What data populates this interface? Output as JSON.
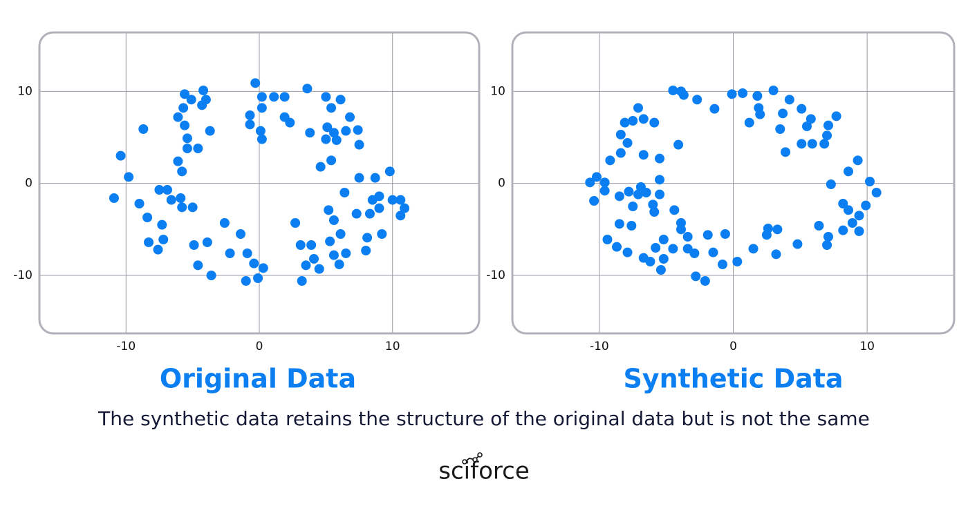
{
  "chart_data": [
    {
      "type": "scatter",
      "title": "Original Data",
      "color": "#0b7ff2",
      "grid": true,
      "xlim": [
        -16.5,
        16.5
      ],
      "ylim": [
        -16.3,
        16.4
      ],
      "xticks": [
        -10,
        0,
        10
      ],
      "yticks": [
        -10,
        0,
        10
      ],
      "x": [
        -0.3,
        3.6,
        -5.6,
        -4.2,
        -5.1,
        -4.0,
        -4.3,
        0.2,
        1.1,
        1.9,
        5.0,
        6.1,
        5.4,
        -5.7,
        0.2,
        -6.1,
        -0.7,
        1.9,
        2.3,
        6.8,
        -5.6,
        -0.7,
        -8.7,
        -3.7,
        0.1,
        3.8,
        5.1,
        5.6,
        6.5,
        7.4,
        -5.4,
        0.2,
        5.0,
        5.8,
        -5.4,
        -4.6,
        7.5,
        -10.4,
        -6.1,
        5.4,
        4.6,
        -5.8,
        -9.8,
        7.5,
        8.7,
        9.8,
        -7.5,
        -6.9,
        6.4,
        -10.9,
        -6.6,
        -5.9,
        -9.0,
        -5.8,
        -5.0,
        8.5,
        9.0,
        10.0,
        10.6,
        10.9,
        5.2,
        9.0,
        7.3,
        8.3,
        10.6,
        -8.4,
        5.6,
        -7.3,
        -2.6,
        2.7,
        -1.4,
        6.1,
        9.2,
        -7.2,
        8.1,
        -8.3,
        -4.9,
        -3.9,
        3.1,
        3.9,
        5.3,
        -7.6,
        -2.2,
        -0.9,
        5.6,
        6.5,
        8.0,
        4.1,
        -0.4,
        -4.6,
        3.5,
        6.0,
        0.3,
        4.5,
        -3.6,
        -1.0,
        -0.1,
        3.2
      ],
      "values": [
        10.9,
        10.3,
        9.7,
        10.1,
        9.1,
        9.1,
        8.5,
        9.4,
        9.4,
        9.4,
        9.4,
        9.1,
        8.2,
        8.2,
        8.2,
        7.2,
        7.4,
        7.2,
        6.6,
        7.2,
        6.3,
        6.4,
        5.9,
        5.7,
        5.7,
        5.5,
        6.1,
        5.5,
        5.7,
        5.8,
        4.9,
        4.8,
        4.8,
        4.7,
        3.8,
        3.8,
        4.2,
        3.0,
        2.4,
        2.5,
        1.8,
        1.3,
        0.7,
        0.6,
        0.6,
        1.3,
        -0.7,
        -0.7,
        -1.0,
        -1.6,
        -1.8,
        -1.6,
        -2.2,
        -2.6,
        -2.6,
        -1.8,
        -1.4,
        -1.8,
        -1.8,
        -2.7,
        -2.9,
        -2.7,
        -3.3,
        -3.3,
        -3.5,
        -3.7,
        -4.0,
        -4.5,
        -4.3,
        -4.3,
        -5.5,
        -5.5,
        -5.5,
        -6.1,
        -5.9,
        -6.4,
        -6.7,
        -6.4,
        -6.7,
        -6.7,
        -6.3,
        -7.2,
        -7.6,
        -7.6,
        -7.8,
        -7.6,
        -7.3,
        -8.2,
        -8.7,
        -8.9,
        -8.9,
        -8.8,
        -9.2,
        -9.3,
        -10.0,
        -10.6,
        -10.3,
        -10.6
      ]
    },
    {
      "type": "scatter",
      "title": "Synthetic Data",
      "color": "#0b7ff2",
      "grid": true,
      "xlim": [
        -16.5,
        16.5
      ],
      "ylim": [
        -16.3,
        16.4
      ],
      "xticks": [
        -10,
        0,
        10
      ],
      "yticks": [
        -10,
        0,
        10
      ],
      "x": [
        -4.5,
        -3.9,
        -3.7,
        -2.7,
        -0.1,
        0.7,
        3.0,
        1.8,
        4.2,
        -1.4,
        1.9,
        2.0,
        3.7,
        5.1,
        5.8,
        7.7,
        -7.1,
        -6.7,
        -7.5,
        -8.1,
        -5.9,
        1.2,
        5.5,
        7.1,
        3.5,
        -8.4,
        7.0,
        -7.9,
        -4.1,
        5.1,
        5.9,
        6.8,
        3.9,
        -8.4,
        -6.7,
        -5.5,
        -9.2,
        9.3,
        8.6,
        -10.2,
        -10.7,
        -9.6,
        10.2,
        -5.5,
        7.3,
        -6.9,
        -9.6,
        -7.8,
        -6.5,
        10.7,
        -7.1,
        -5.5,
        -8.5,
        -10.4,
        -6.0,
        -7.5,
        8.2,
        9.9,
        -5.9,
        -4.4,
        8.6,
        9.4,
        -8.5,
        -7.6,
        -3.9,
        8.9,
        6.4,
        -3.9,
        2.6,
        3.3,
        8.2,
        9.4,
        2.5,
        -3.4,
        -1.9,
        -0.6,
        7.1,
        -9.4,
        -5.2,
        4.8,
        7.0,
        -8.7,
        -5.8,
        -4.5,
        -3.4,
        1.5,
        -7.9,
        -2.9,
        -1.5,
        3.2,
        -6.7,
        -5.2,
        -6.2,
        0.3,
        -0.8,
        -5.4,
        -2.8,
        -2.1
      ],
      "values": [
        10.1,
        10.0,
        9.6,
        9.1,
        9.7,
        9.8,
        10.1,
        9.5,
        9.1,
        8.1,
        8.2,
        7.5,
        7.6,
        8.1,
        7.0,
        7.3,
        8.2,
        7.0,
        6.8,
        6.6,
        6.6,
        6.6,
        6.2,
        6.3,
        5.9,
        5.3,
        5.2,
        4.4,
        4.2,
        4.3,
        4.3,
        4.3,
        3.4,
        3.3,
        3.1,
        2.7,
        2.5,
        2.5,
        1.3,
        0.7,
        0.1,
        0.1,
        0.2,
        0.4,
        -0.1,
        -0.4,
        -0.8,
        -0.9,
        -1.0,
        -1.0,
        -1.2,
        -1.2,
        -1.4,
        -1.9,
        -2.3,
        -2.5,
        -2.2,
        -2.4,
        -3.1,
        -2.9,
        -2.9,
        -3.5,
        -4.4,
        -4.6,
        -4.3,
        -4.3,
        -4.6,
        -5.0,
        -4.9,
        -5.0,
        -5.1,
        -5.2,
        -5.6,
        -5.8,
        -5.6,
        -5.5,
        -5.8,
        -6.1,
        -6.1,
        -6.6,
        -6.7,
        -6.9,
        -7.0,
        -7.1,
        -7.1,
        -7.1,
        -7.5,
        -7.6,
        -7.5,
        -7.7,
        -8.1,
        -8.2,
        -8.5,
        -8.5,
        -8.8,
        -9.4,
        -10.1,
        -10.6
      ]
    }
  ],
  "caption": "The synthetic data retains the structure of the original data but is not the same",
  "logo": "sciforce"
}
